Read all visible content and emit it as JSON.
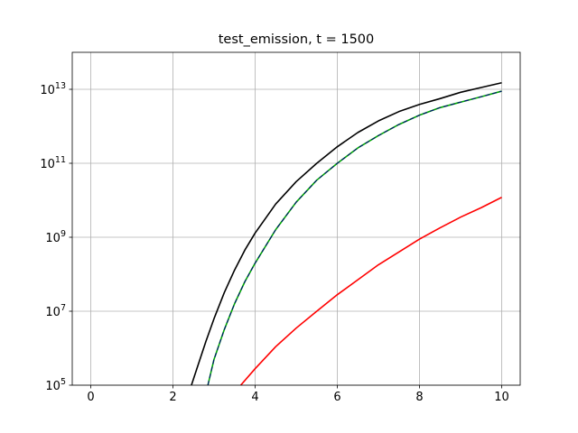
{
  "chart_data": {
    "type": "line",
    "title": "test_emission, t = 1500",
    "xlabel": "",
    "ylabel": "",
    "xlim": [
      -0.45,
      10.45
    ],
    "ylim": [
      100000.0,
      100000000000000.0
    ],
    "yscale": "log",
    "grid": true,
    "legend": "none",
    "x_ticks": [
      0,
      2,
      4,
      6,
      8,
      10
    ],
    "x_tick_labels": [
      "0",
      "2",
      "4",
      "6",
      "8",
      "10"
    ],
    "y_ticks": [
      100000.0,
      10000000.0,
      1000000000.0,
      100000000000.0,
      10000000000000.0
    ],
    "y_tick_labels": [
      {
        "base": "10",
        "exp": "5"
      },
      {
        "base": "10",
        "exp": "7"
      },
      {
        "base": "10",
        "exp": "9"
      },
      {
        "base": "10",
        "exp": "11"
      },
      {
        "base": "10",
        "exp": "13"
      }
    ],
    "series": [
      {
        "color": "#000000",
        "x": [
          2.45,
          2.6,
          2.8,
          3.0,
          3.25,
          3.5,
          3.75,
          4.0,
          4.5,
          5.0,
          5.5,
          6.0,
          6.5,
          7.0,
          7.5,
          8.0,
          8.5,
          9.0,
          9.5,
          10.0
        ],
        "y": [
          100000.0,
          320000.0,
          1500000.0,
          6300000.0,
          32000000.0,
          130000000.0,
          450000000.0,
          1300000000.0,
          7900000000.0,
          32000000000.0,
          100000000000.0,
          280000000000.0,
          680000000000.0,
          1400000000000.0,
          2500000000000.0,
          3900000000000.0,
          5600000000000.0,
          8300000000000.0,
          11200000000000.0,
          15000000000000.0
        ]
      },
      {
        "color": "#00aa00",
        "x": [
          2.85,
          3.0,
          3.25,
          3.5,
          3.75,
          4.0,
          4.5,
          5.0,
          5.5,
          6.0,
          6.5,
          7.0,
          7.5,
          8.0,
          8.5,
          9.0,
          9.5,
          10.0
        ],
        "y": [
          100000.0,
          500000.0,
          3200000.0,
          16000000.0,
          63000000.0,
          200000000.0,
          1600000000.0,
          8900000000.0,
          35000000000.0,
          100000000000.0,
          260000000000.0,
          560000000000.0,
          1120000000000.0,
          2000000000000.0,
          3200000000000.0,
          4500000000000.0,
          6300000000000.0,
          8900000000000.0
        ]
      },
      {
        "color": "#000080",
        "x": [
          2.85,
          3.0,
          3.25,
          3.5,
          3.75,
          4.0,
          4.5,
          5.0,
          5.5,
          6.0,
          6.5,
          7.0,
          7.5,
          8.0,
          8.5,
          9.0,
          9.5,
          10.0
        ],
        "y": [
          100000.0,
          500000.0,
          3200000.0,
          16000000.0,
          63000000.0,
          200000000.0,
          1600000000.0,
          8900000000.0,
          35000000000.0,
          100000000000.0,
          260000000000.0,
          560000000000.0,
          1120000000000.0,
          2000000000000.0,
          3200000000000.0,
          4500000000000.0,
          6300000000000.0,
          8900000000000.0
        ]
      },
      {
        "color": "#ff0000",
        "x": [
          3.65,
          4.0,
          4.5,
          5.0,
          5.5,
          6.0,
          6.5,
          7.0,
          7.5,
          8.0,
          8.5,
          9.0,
          9.5,
          10.0
        ],
        "y": [
          100000.0,
          280000.0,
          1100000.0,
          3500000.0,
          10000000.0,
          28000000.0,
          71000000.0,
          180000000.0,
          400000000.0,
          890000000.0,
          1800000000.0,
          3500000000.0,
          6300000000.0,
          12000000000.0
        ]
      }
    ],
    "colors": {
      "grid": "#b0b0b0",
      "axes": "#000000",
      "background": "#ffffff"
    }
  }
}
